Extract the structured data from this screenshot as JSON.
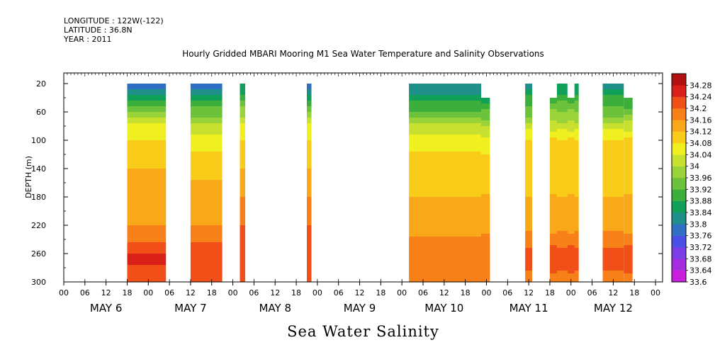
{
  "header": {
    "longitude": "LONGITUDE : 122W(-122)",
    "latitude": "LATITUDE : 36.8N",
    "year": "YEAR : 2011"
  },
  "chart_data": {
    "type": "heatmap",
    "title": "Hourly Gridded MBARI Mooring M1 Sea Water Temperature and Salinity Observations",
    "xlabel": "Sea Water Salinity",
    "ylabel": "DEPTH (m)",
    "x_unit": "hours since May 6 00:00",
    "xlim": [
      0,
      170
    ],
    "ylim": [
      300,
      5
    ],
    "yticks": [
      20,
      60,
      100,
      140,
      180,
      220,
      260,
      300
    ],
    "xtick_hours": [
      "00",
      "06",
      "12",
      "18",
      "00",
      "06",
      "12",
      "18",
      "00",
      "06",
      "12",
      "18",
      "00",
      "06",
      "12",
      "18",
      "00",
      "06",
      "12",
      "18",
      "00",
      "06",
      "12",
      "18",
      "00",
      "06",
      "12",
      "18",
      "00"
    ],
    "day_labels": [
      "MAY  6",
      "MAY  7",
      "MAY  8",
      "MAY  9",
      "MAY 10",
      "MAY 11",
      "MAY 12"
    ],
    "colorbar": {
      "levels": [
        33.6,
        33.64,
        33.68,
        33.72,
        33.76,
        33.8,
        33.84,
        33.88,
        33.92,
        33.96,
        34,
        34.04,
        34.08,
        34.12,
        34.16,
        34.2,
        34.24,
        34.28
      ],
      "labels": [
        "33.6",
        "33.64",
        "33.68",
        "33.72",
        "33.76",
        "33.8",
        "33.84",
        "33.88",
        "33.92",
        "33.96",
        "34",
        "34.04",
        "34.08",
        "34.12",
        "34.16",
        "34.2",
        "34.24",
        "34.28"
      ],
      "colors": [
        "#c91fdc",
        "#a52de0",
        "#7b3de6",
        "#4a4fe8",
        "#2f6fc4",
        "#1f8f8a",
        "#10a05a",
        "#3cae3c",
        "#6cc23a",
        "#9ad23a",
        "#c8e030",
        "#f0f020",
        "#f8cc18",
        "#f8a818",
        "#f88018",
        "#f05018",
        "#d82018",
        "#b01010"
      ]
    },
    "series": [
      {
        "start": 18,
        "end": 29,
        "top": 20,
        "profile": [
          33.78,
          33.86,
          33.96,
          34.04,
          34.08,
          34.12,
          34.14,
          34.16,
          34.22,
          34.25,
          34.2
        ]
      },
      {
        "start": 36,
        "end": 45,
        "top": 20,
        "profile": [
          33.76,
          33.84,
          33.94,
          34.02,
          34.06,
          34.1,
          34.14,
          34.16,
          34.22,
          34.24,
          34.2
        ]
      },
      {
        "start": 50,
        "end": 51.5,
        "top": 20,
        "profile": [
          33.84,
          33.9,
          33.98,
          34.04,
          34.08,
          34.12,
          34.16,
          34.2,
          34.22,
          34.24,
          34.22
        ]
      },
      {
        "start": 69,
        "end": 70.3,
        "top": 20,
        "profile": [
          33.74,
          33.86,
          33.98,
          34.04,
          34.08,
          34.12,
          34.16,
          34.2,
          34.22,
          34.24,
          34.22
        ]
      },
      {
        "start": 98,
        "end": 118.5,
        "top": 20,
        "profile": [
          33.8,
          33.86,
          33.92,
          34.0,
          34.06,
          34.1,
          34.12,
          34.14,
          34.18,
          34.2,
          34.18
        ]
      },
      {
        "start": 118.5,
        "end": 121,
        "top": 40,
        "profile": [
          33.8,
          33.86,
          33.92,
          34.0,
          34.06,
          34.1,
          34.12,
          34.14,
          34.18,
          34.2,
          34.18
        ]
      },
      {
        "start": 131,
        "end": 133,
        "top": 20,
        "profile": [
          33.82,
          33.88,
          33.94,
          34.02,
          34.08,
          34.1,
          34.12,
          34.14,
          34.2,
          34.22,
          34.18
        ]
      },
      {
        "start": 138,
        "end": 146,
        "top": 40,
        "profile": [
          33.84,
          33.9,
          33.96,
          34.02,
          34.08,
          34.1,
          34.12,
          34.14,
          34.2,
          34.22,
          34.18
        ]
      },
      {
        "start": 140,
        "end": 143,
        "top": 20,
        "profile": [
          33.84,
          33.9,
          33.96,
          34.02,
          34.08,
          34.1,
          34.12,
          34.14,
          34.2,
          34.22,
          34.18
        ]
      },
      {
        "start": 145,
        "end": 146.2,
        "top": 20,
        "profile": [
          33.84,
          33.9,
          33.96,
          34.02,
          34.08,
          34.1,
          34.12,
          34.14,
          34.2,
          34.22,
          34.18
        ]
      },
      {
        "start": 153,
        "end": 159,
        "top": 20,
        "profile": [
          33.82,
          33.88,
          33.94,
          34.02,
          34.08,
          34.1,
          34.12,
          34.14,
          34.2,
          34.22,
          34.18
        ]
      },
      {
        "start": 159,
        "end": 161.5,
        "top": 40,
        "profile": [
          33.82,
          33.88,
          33.94,
          34.02,
          34.08,
          34.1,
          34.12,
          34.14,
          34.2,
          34.22,
          34.18
        ]
      }
    ],
    "profile_depths": [
      20,
      40,
      60,
      80,
      100,
      140,
      180,
      220,
      250,
      270,
      300
    ],
    "grid": false,
    "legend": "right"
  }
}
